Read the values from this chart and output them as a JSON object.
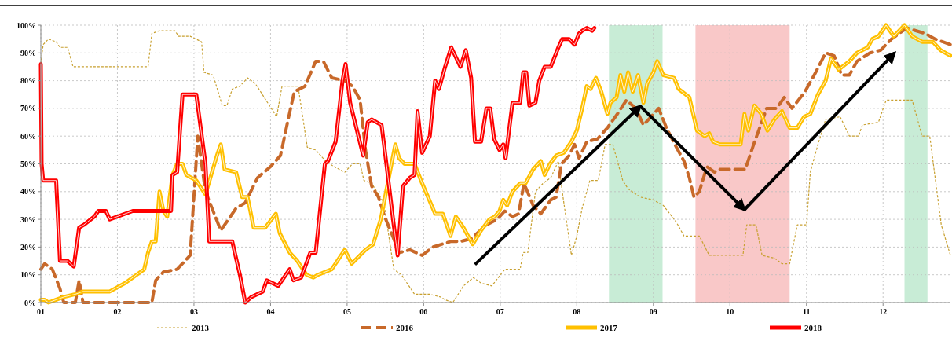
{
  "chart_data": {
    "type": "line",
    "xlim": [
      1,
      12.88
    ],
    "xticks": [
      {
        "value": 1,
        "label": "01"
      },
      {
        "value": 2,
        "label": "02"
      },
      {
        "value": 3,
        "label": "03"
      },
      {
        "value": 4,
        "label": "04"
      },
      {
        "value": 5,
        "label": "05"
      },
      {
        "value": 6,
        "label": "06"
      },
      {
        "value": 7,
        "label": "07"
      },
      {
        "value": 8,
        "label": "08"
      },
      {
        "value": 9,
        "label": "09"
      },
      {
        "value": 10,
        "label": "10"
      },
      {
        "value": 11,
        "label": "11"
      },
      {
        "value": 12,
        "label": "12"
      }
    ],
    "ylim": [
      0,
      100
    ],
    "yticks": [
      {
        "value": 0,
        "label": "0%"
      },
      {
        "value": 10,
        "label": "10%"
      },
      {
        "value": 20,
        "label": "20%"
      },
      {
        "value": 30,
        "label": "30%"
      },
      {
        "value": 40,
        "label": "40%"
      },
      {
        "value": 50,
        "label": "50%"
      },
      {
        "value": 60,
        "label": "60%"
      },
      {
        "value": 70,
        "label": "70%"
      },
      {
        "value": 80,
        "label": "80%"
      },
      {
        "value": 90,
        "label": "90%"
      },
      {
        "value": 100,
        "label": "100%"
      }
    ],
    "grid": true,
    "legend": "bottom",
    "marker": "none",
    "bands": [
      {
        "axis": "x",
        "from": 8.42,
        "to": 9.12,
        "color": "#c8ecd6"
      },
      {
        "axis": "x",
        "from": 9.55,
        "to": 10.78,
        "color": "#f9c8c8"
      },
      {
        "axis": "x",
        "from": 12.28,
        "to": 12.58,
        "color": "#c8ecd6"
      }
    ],
    "series": [
      {
        "name": "2013",
        "color": "#c8a030",
        "line_style": "dotted",
        "x": [
          1.0,
          1.03,
          1.1,
          1.2,
          1.25,
          1.35,
          1.42,
          2.0,
          2.4,
          2.45,
          2.55,
          2.75,
          2.8,
          2.95,
          3.1,
          3.13,
          3.25,
          3.37,
          3.43,
          3.5,
          3.6,
          3.7,
          3.8,
          4.08,
          4.15,
          4.36,
          4.48,
          4.59,
          4.72,
          4.83,
          4.97,
          5.07,
          5.17,
          5.22,
          5.32,
          5.48,
          5.61,
          5.71,
          5.88,
          6.08,
          6.22,
          6.28,
          6.38,
          6.52,
          6.65,
          6.75,
          6.89,
          7.06,
          7.26,
          7.3,
          7.36,
          7.46,
          7.56,
          7.66,
          7.76,
          7.81,
          7.93,
          8.0,
          8.07,
          8.17,
          8.28,
          8.37,
          8.47,
          8.6,
          8.67,
          8.83,
          9.0,
          9.13,
          9.3,
          9.4,
          9.6,
          9.73,
          9.86,
          10.17,
          10.22,
          10.34,
          10.42,
          10.58,
          10.68,
          10.78,
          10.88,
          11.0,
          11.05,
          11.15,
          11.25,
          11.44,
          11.56,
          11.68,
          11.73,
          11.94,
          12.04,
          12.38,
          12.51,
          12.61,
          12.68,
          12.76,
          12.88
        ],
        "values": [
          86,
          93,
          95,
          94,
          92,
          92,
          85,
          85,
          85,
          97,
          98,
          98,
          96,
          96,
          94,
          83,
          82,
          71,
          71,
          77,
          78,
          81,
          79,
          67,
          78,
          78,
          56,
          55,
          51,
          49,
          47,
          50,
          50,
          44,
          43,
          36,
          12,
          10,
          3,
          3,
          2,
          1,
          0,
          6,
          9,
          7,
          6,
          12,
          12,
          18,
          18,
          40,
          43,
          45,
          51,
          40,
          17,
          24,
          34,
          44,
          44,
          57,
          57,
          44,
          41,
          38,
          37,
          35,
          29,
          24,
          24,
          17,
          17,
          17,
          28,
          28,
          17,
          16,
          14,
          14,
          28,
          28,
          47,
          57,
          66,
          67,
          60,
          60,
          64,
          65,
          73,
          73,
          60,
          60,
          45,
          28,
          17
        ]
      },
      {
        "name": "2016",
        "color": "#c8692a",
        "line_style": "dashed",
        "x": [
          1.0,
          1.05,
          1.15,
          1.25,
          1.3,
          1.45,
          1.5,
          1.55,
          2.45,
          2.5,
          2.6,
          2.78,
          2.95,
          3.05,
          3.15,
          3.35,
          3.55,
          3.67,
          3.83,
          4.0,
          4.13,
          4.23,
          4.31,
          4.45,
          4.59,
          4.69,
          4.8,
          4.97,
          5.07,
          5.17,
          5.24,
          5.32,
          5.41,
          5.49,
          5.58,
          5.68,
          5.82,
          5.98,
          6.12,
          6.35,
          6.48,
          6.62,
          6.82,
          6.96,
          7.06,
          7.16,
          7.24,
          7.31,
          7.43,
          7.53,
          7.66,
          7.73,
          7.8,
          7.9,
          7.97,
          8.03,
          8.13,
          8.27,
          8.4,
          8.53,
          8.65,
          8.77,
          8.87,
          8.97,
          9.07,
          9.17,
          9.3,
          9.4,
          9.47,
          9.53,
          9.6,
          9.7,
          9.8,
          9.86,
          10.2,
          10.31,
          10.48,
          10.61,
          10.71,
          10.81,
          10.98,
          11.12,
          11.25,
          11.36,
          11.46,
          11.56,
          11.66,
          11.83,
          11.97,
          12.11,
          12.31,
          12.55,
          12.68,
          12.78,
          12.88
        ],
        "values": [
          12,
          14,
          12,
          5,
          0,
          0,
          8,
          0,
          0,
          8,
          11,
          12,
          17,
          60,
          40,
          26,
          34,
          36,
          45,
          49,
          53,
          66,
          76,
          78,
          87,
          87,
          81,
          80,
          78,
          73,
          55,
          42,
          38,
          31,
          25,
          18,
          19,
          17,
          20,
          22,
          22,
          23,
          28,
          30,
          33,
          31,
          32,
          43,
          35,
          32,
          37,
          38,
          50,
          53,
          57,
          52,
          58,
          59,
          63,
          68,
          73,
          70,
          64,
          67,
          70,
          63,
          56,
          51,
          45,
          38,
          40,
          49,
          47,
          48,
          48,
          57,
          70,
          70,
          74,
          70,
          76,
          83,
          90,
          89,
          82,
          82,
          87,
          90,
          91,
          95,
          99,
          97,
          95,
          94,
          93
        ]
      },
      {
        "name": "2017",
        "color": "#ffc000",
        "line_style": "solid",
        "x": [
          1.0,
          1.05,
          1.1,
          1.2,
          1.3,
          1.45,
          1.55,
          1.9,
          2.1,
          2.3,
          2.35,
          2.4,
          2.45,
          2.5,
          2.55,
          2.6,
          2.65,
          2.72,
          2.78,
          2.85,
          2.9,
          3.03,
          3.15,
          3.3,
          3.35,
          3.4,
          3.55,
          3.63,
          3.7,
          3.78,
          3.93,
          4.07,
          4.12,
          4.25,
          4.35,
          4.47,
          4.56,
          4.62,
          4.8,
          4.97,
          5.06,
          5.24,
          5.34,
          5.44,
          5.51,
          5.58,
          5.63,
          5.68,
          5.75,
          5.88,
          5.98,
          6.15,
          6.25,
          6.35,
          6.42,
          6.52,
          6.64,
          6.75,
          6.86,
          6.93,
          6.99,
          7.04,
          7.09,
          7.16,
          7.26,
          7.33,
          7.43,
          7.53,
          7.58,
          7.65,
          7.73,
          7.83,
          7.93,
          8.0,
          8.07,
          8.13,
          8.18,
          8.25,
          8.32,
          8.4,
          8.44,
          8.52,
          8.57,
          8.62,
          8.67,
          8.73,
          8.8,
          8.87,
          8.92,
          9.0,
          9.05,
          9.13,
          9.27,
          9.33,
          9.47,
          9.57,
          9.67,
          9.73,
          9.78,
          9.87,
          10.0,
          10.14,
          10.19,
          10.24,
          10.32,
          10.41,
          10.49,
          10.58,
          10.68,
          10.78,
          10.88,
          10.97,
          11.05,
          11.15,
          11.25,
          11.32,
          11.42,
          11.56,
          11.66,
          11.8,
          11.86,
          11.94,
          12.04,
          12.14,
          12.28,
          12.38,
          12.51,
          12.65,
          12.75,
          12.88
        ],
        "values": [
          1,
          1,
          0,
          1,
          2,
          3,
          4,
          4,
          7,
          11,
          12,
          18,
          22,
          22,
          40,
          33,
          31,
          46,
          50,
          50,
          46,
          44,
          39,
          53,
          57,
          48,
          47,
          38,
          38,
          27,
          27,
          32,
          25,
          18,
          15,
          10,
          9,
          10,
          12,
          19,
          14,
          19,
          21,
          30,
          40,
          50,
          57,
          52,
          50,
          50,
          43,
          32,
          32,
          24,
          31,
          27,
          21,
          26,
          30,
          31,
          33,
          37,
          35,
          40,
          43,
          43,
          48,
          51,
          46,
          50,
          53,
          54,
          58,
          62,
          70,
          78,
          77,
          81,
          76,
          68,
          72,
          74,
          82,
          76,
          83,
          76,
          82,
          72,
          79,
          83,
          87,
          82,
          81,
          77,
          74,
          62,
          60,
          61,
          58,
          57,
          57,
          57,
          68,
          62,
          71,
          68,
          62,
          66,
          69,
          63,
          63,
          67,
          68,
          75,
          80,
          88,
          84,
          87,
          90,
          92,
          95,
          96,
          100,
          96,
          100,
          96,
          94,
          94,
          91,
          89
        ]
      },
      {
        "name": "2018",
        "color": "#ff0000",
        "line_style": "solid",
        "x": [
          1.0,
          1.01,
          1.03,
          1.2,
          1.25,
          1.35,
          1.43,
          1.5,
          1.56,
          1.7,
          1.75,
          1.85,
          1.9,
          2.2,
          2.7,
          2.72,
          2.78,
          2.85,
          3.03,
          3.15,
          3.2,
          3.5,
          3.6,
          3.67,
          3.75,
          3.9,
          3.95,
          4.1,
          4.25,
          4.3,
          4.4,
          4.52,
          4.59,
          4.71,
          4.75,
          4.85,
          4.94,
          4.98,
          5.04,
          5.21,
          5.27,
          5.32,
          5.45,
          5.5,
          5.6,
          5.66,
          5.73,
          5.82,
          5.88,
          5.92,
          5.98,
          6.08,
          6.15,
          6.2,
          6.28,
          6.36,
          6.48,
          6.55,
          6.62,
          6.67,
          6.75,
          6.82,
          6.87,
          6.92,
          6.99,
          7.04,
          7.07,
          7.16,
          7.26,
          7.3,
          7.34,
          7.38,
          7.46,
          7.51,
          7.58,
          7.66,
          7.76,
          7.81,
          7.9,
          7.97,
          8.03,
          8.07,
          8.13,
          8.2,
          8.23
        ],
        "values": [
          86,
          50,
          44,
          44,
          15,
          15,
          13,
          27,
          28,
          31,
          33,
          33,
          30,
          33,
          33,
          46,
          47,
          75,
          75,
          50,
          22,
          22,
          10,
          0,
          2,
          4,
          8,
          6,
          12,
          8,
          9,
          18,
          18,
          50,
          51,
          58,
          80,
          86,
          72,
          53,
          65,
          66,
          64,
          53,
          30,
          17,
          42,
          45,
          46,
          69,
          54,
          60,
          80,
          77,
          85,
          92,
          85,
          91,
          81,
          58,
          58,
          70,
          70,
          59,
          55,
          57,
          52,
          72,
          72,
          83,
          83,
          71,
          72,
          80,
          85,
          85,
          92,
          95,
          95,
          93,
          97,
          98,
          99,
          98,
          99
        ]
      }
    ]
  }
}
